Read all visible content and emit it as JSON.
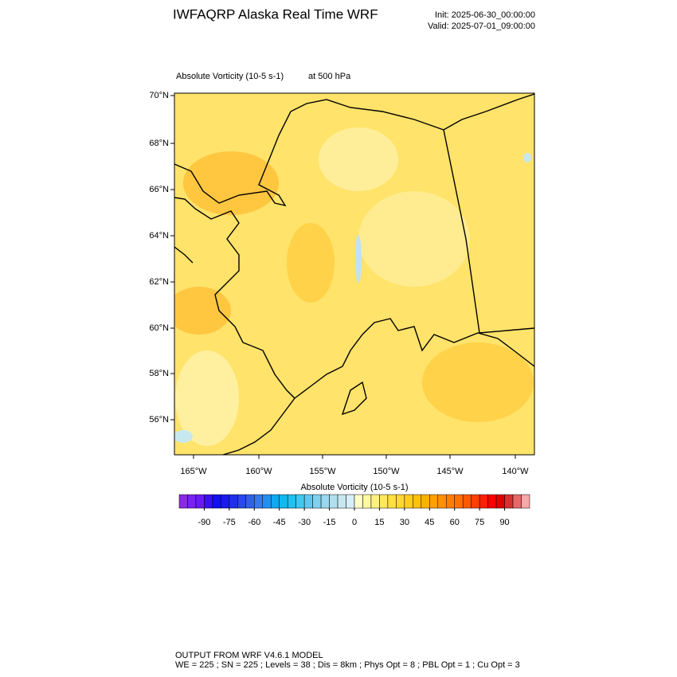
{
  "header": {
    "title": "IWFAQRP Alaska Real Time WRF",
    "init": "Init: 2025-06-30_00:00:00",
    "valid": "Valid: 2025-07-01_09:00:00"
  },
  "map": {
    "field": "Absolute Vorticity   (10-5 s-1)",
    "level": "at   500 hPa",
    "lat_labels": [
      "70°N",
      "68°N",
      "66°N",
      "64°N",
      "62°N",
      "60°N",
      "58°N",
      "56°N"
    ],
    "lon_labels": [
      "165°W",
      "160°W",
      "155°W",
      "150°W",
      "145°W",
      "140°W"
    ]
  },
  "colorbar": {
    "title": "Absolute Vorticity  (10-5 s-1)",
    "lim": [
      -105,
      105
    ],
    "ticks": [
      -90,
      -75,
      -60,
      -45,
      -30,
      -15,
      0,
      15,
      30,
      45,
      60,
      75,
      90
    ],
    "colors": [
      "#8a2be2",
      "#7a22f0",
      "#6a1af8",
      "#3a10f8",
      "#1010f0",
      "#1a1af0",
      "#2030e8",
      "#2848e8",
      "#3060e8",
      "#3878e8",
      "#2090f0",
      "#10a8f0",
      "#10b8f0",
      "#20c0f0",
      "#40c8f0",
      "#60c8f0",
      "#80d0f0",
      "#98d8f0",
      "#b0e0f0",
      "#c8e8f0",
      "#d8eef8",
      "#fffccc",
      "#fff8a0",
      "#fff080",
      "#ffe860",
      "#ffe040",
      "#ffd830",
      "#ffcc20",
      "#ffc010",
      "#ffb000",
      "#ffa000",
      "#ff9000",
      "#ff8000",
      "#ff7000",
      "#ff5a00",
      "#ff4000",
      "#ff2000",
      "#ff0000",
      "#e00000",
      "#d83030",
      "#e86868",
      "#f8a8a8"
    ]
  },
  "footer": {
    "line1": "OUTPUT FROM WRF V4.6.1 MODEL",
    "line2": "WE = 225 ; SN = 225 ; Levels = 38 ; Dis = 8km ; Phys Opt = 8 ; PBL Opt = 1 ; Cu Opt = 3"
  }
}
